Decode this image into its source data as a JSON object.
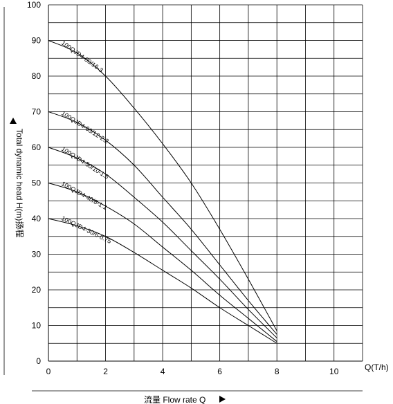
{
  "chart_data": {
    "type": "line",
    "xlabel": "Q(T/h)",
    "ylabel": "Total dynamic head H(m)扬程",
    "x_axis_title": "流量 Flow rate Q",
    "xlim": [
      0,
      11
    ],
    "ylim": [
      0,
      100
    ],
    "xticks": [
      0,
      2,
      4,
      6,
      8,
      10
    ],
    "yticks": [
      0,
      10,
      20,
      30,
      40,
      50,
      60,
      70,
      80,
      90,
      100
    ],
    "grid": true,
    "series": [
      {
        "name": "100QJD4-80/16-3",
        "x": [
          0,
          1,
          2,
          3,
          4,
          5,
          6,
          7,
          8
        ],
        "y": [
          90,
          86.5,
          80,
          71,
          61,
          50,
          37,
          23,
          8.5
        ]
      },
      {
        "name": "100QJD4-60/12-2.2",
        "x": [
          0,
          1,
          2,
          3,
          4,
          5,
          6,
          7,
          8
        ],
        "y": [
          70,
          67,
          62,
          55,
          46,
          37,
          27,
          17,
          7.5
        ]
      },
      {
        "name": "100QJD4-50/10-1.5",
        "x": [
          0,
          1,
          2,
          3,
          4,
          5,
          6,
          7,
          8
        ],
        "y": [
          60,
          57,
          52.5,
          46,
          39,
          31,
          23,
          14.5,
          6.5
        ]
      },
      {
        "name": "100QJD4-40/8-1.1",
        "x": [
          0,
          1,
          2,
          3,
          4,
          5,
          6,
          7,
          8
        ],
        "y": [
          50,
          47.5,
          43.5,
          38.5,
          32,
          25.5,
          18.5,
          12,
          5.5
        ]
      },
      {
        "name": "100QJD4-30/6-0.75",
        "x": [
          0,
          1,
          2,
          3,
          4,
          5,
          6,
          7,
          8
        ],
        "y": [
          40,
          38,
          35,
          30.5,
          25.5,
          20.5,
          15,
          10,
          5
        ]
      }
    ]
  }
}
